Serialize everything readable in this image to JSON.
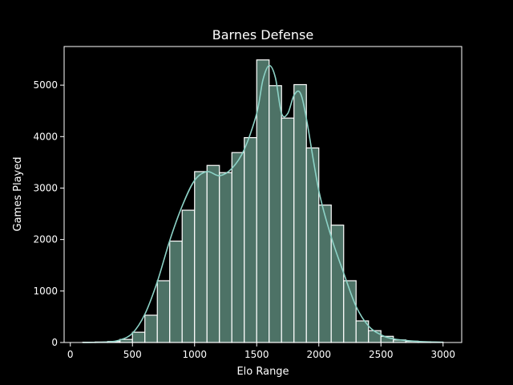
{
  "chart_data": {
    "type": "bar",
    "title": "Barnes Defense",
    "xlabel": "Elo Range",
    "ylabel": "Games Played",
    "xlim": [
      -50,
      3150
    ],
    "ylim": [
      0,
      5750
    ],
    "xticks": [
      0,
      500,
      1000,
      1500,
      2000,
      2500,
      3000
    ],
    "yticks": [
      0,
      1000,
      2000,
      3000,
      4000,
      5000
    ],
    "bin_width": 100,
    "bins": [
      {
        "start": 100,
        "count": 5
      },
      {
        "start": 200,
        "count": 10
      },
      {
        "start": 300,
        "count": 20
      },
      {
        "start": 400,
        "count": 60
      },
      {
        "start": 500,
        "count": 200
      },
      {
        "start": 600,
        "count": 530
      },
      {
        "start": 700,
        "count": 1200
      },
      {
        "start": 800,
        "count": 1970
      },
      {
        "start": 900,
        "count": 2570
      },
      {
        "start": 1000,
        "count": 3320
      },
      {
        "start": 1100,
        "count": 3440
      },
      {
        "start": 1200,
        "count": 3300
      },
      {
        "start": 1300,
        "count": 3690
      },
      {
        "start": 1400,
        "count": 3980
      },
      {
        "start": 1500,
        "count": 5490
      },
      {
        "start": 1600,
        "count": 4990
      },
      {
        "start": 1700,
        "count": 4360
      },
      {
        "start": 1800,
        "count": 5010
      },
      {
        "start": 1900,
        "count": 3780
      },
      {
        "start": 2000,
        "count": 2670
      },
      {
        "start": 2100,
        "count": 2280
      },
      {
        "start": 2200,
        "count": 1200
      },
      {
        "start": 2300,
        "count": 420
      },
      {
        "start": 2400,
        "count": 230
      },
      {
        "start": 2500,
        "count": 120
      },
      {
        "start": 2600,
        "count": 50
      },
      {
        "start": 2700,
        "count": 25
      },
      {
        "start": 2800,
        "count": 15
      },
      {
        "start": 2900,
        "count": 8
      }
    ],
    "kde": {
      "x": [
        100,
        300,
        400,
        500,
        600,
        700,
        800,
        900,
        1000,
        1100,
        1200,
        1300,
        1400,
        1500,
        1550,
        1600,
        1650,
        1700,
        1750,
        1800,
        1850,
        1900,
        2000,
        2100,
        2200,
        2300,
        2400,
        2500,
        2600,
        2800,
        3000
      ],
      "y": [
        0,
        10,
        50,
        180,
        550,
        1180,
        1980,
        2650,
        3150,
        3320,
        3240,
        3380,
        3750,
        4450,
        5100,
        5380,
        5150,
        4450,
        4450,
        4800,
        4850,
        4350,
        2950,
        2050,
        1350,
        700,
        320,
        150,
        70,
        20,
        5
      ]
    },
    "colors": {
      "bar_fill": "#4d7266",
      "bar_edge": "#ffffff",
      "kde_line": "#8dd3c7",
      "background": "#000000",
      "text": "#ffffff"
    },
    "grid": false,
    "legend": "none"
  }
}
